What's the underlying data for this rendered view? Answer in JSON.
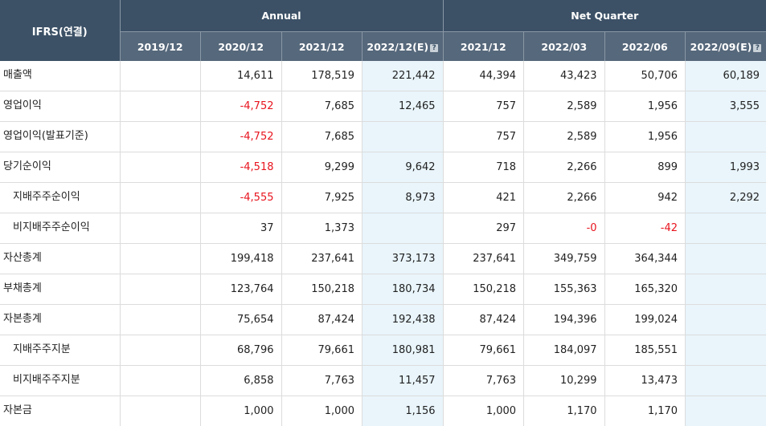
{
  "header": {
    "label": "IFRS(연결)",
    "groups": [
      "Annual",
      "Net Quarter"
    ],
    "columns": [
      "2019/12",
      "2020/12",
      "2021/12",
      "2022/12(E)",
      "2021/12",
      "2022/03",
      "2022/06",
      "2022/09(E)"
    ],
    "help_icon": "question-mark-icon"
  },
  "rows": [
    {
      "label": "매출액",
      "sub": false,
      "values": [
        "",
        "14,611",
        "178,519",
        "221,442",
        "44,394",
        "43,423",
        "50,706",
        "60,189"
      ]
    },
    {
      "label": "영업이익",
      "sub": false,
      "values": [
        "",
        "-4,752",
        "7,685",
        "12,465",
        "757",
        "2,589",
        "1,956",
        "3,555"
      ]
    },
    {
      "label": "영업이익(발표기준)",
      "sub": false,
      "values": [
        "",
        "-4,752",
        "7,685",
        "",
        "757",
        "2,589",
        "1,956",
        ""
      ]
    },
    {
      "label": "당기순이익",
      "sub": false,
      "values": [
        "",
        "-4,518",
        "9,299",
        "9,642",
        "718",
        "2,266",
        "899",
        "1,993"
      ]
    },
    {
      "label": "지배주주순이익",
      "sub": true,
      "values": [
        "",
        "-4,555",
        "7,925",
        "8,973",
        "421",
        "2,266",
        "942",
        "2,292"
      ]
    },
    {
      "label": "비지배주주순이익",
      "sub": true,
      "values": [
        "",
        "37",
        "1,373",
        "",
        "297",
        "-0",
        "-42",
        ""
      ]
    },
    {
      "label": "자산총계",
      "sub": false,
      "values": [
        "",
        "199,418",
        "237,641",
        "373,173",
        "237,641",
        "349,759",
        "364,344",
        ""
      ]
    },
    {
      "label": "부채총계",
      "sub": false,
      "values": [
        "",
        "123,764",
        "150,218",
        "180,734",
        "150,218",
        "155,363",
        "165,320",
        ""
      ]
    },
    {
      "label": "자본총계",
      "sub": false,
      "values": [
        "",
        "75,654",
        "87,424",
        "192,438",
        "87,424",
        "194,396",
        "199,024",
        ""
      ]
    },
    {
      "label": "지배주주지분",
      "sub": true,
      "values": [
        "",
        "68,796",
        "79,661",
        "180,981",
        "79,661",
        "184,097",
        "185,551",
        ""
      ]
    },
    {
      "label": "비지배주주지분",
      "sub": true,
      "values": [
        "",
        "6,858",
        "7,763",
        "11,457",
        "7,763",
        "10,299",
        "13,473",
        ""
      ]
    },
    {
      "label": "자본금",
      "sub": false,
      "values": [
        "",
        "1,000",
        "1,000",
        "1,156",
        "1,000",
        "1,170",
        "1,170",
        ""
      ]
    }
  ],
  "colors": {
    "header_bg": "#3c5166",
    "subheader_bg": "#56687b",
    "estimate_bg": "#e9f5fb",
    "negative_text": "#e8141e"
  }
}
